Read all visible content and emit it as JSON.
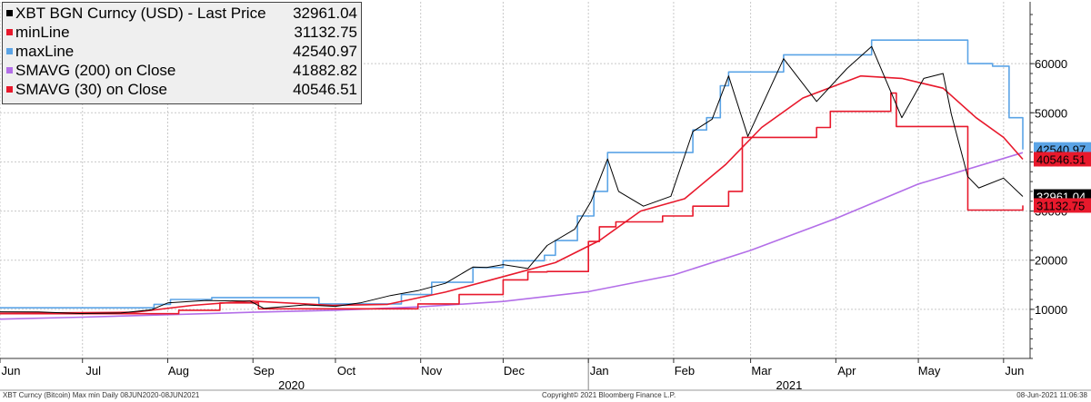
{
  "chart_data": {
    "type": "line",
    "title": "XBT BGN Curncy (USD) - Last Price",
    "ylim": [
      0,
      70000
    ],
    "yticks": [
      10000,
      20000,
      30000,
      40000,
      50000,
      60000
    ],
    "ytick_labels": [
      "10000",
      "20000",
      "30000",
      "40000",
      "50000",
      "60000"
    ],
    "xlim": [
      "2020-06-01",
      "2021-06-08"
    ],
    "month_ticks": [
      {
        "date": "2020-06-01",
        "label": "Jun"
      },
      {
        "date": "2020-07-01",
        "label": "Jul"
      },
      {
        "date": "2020-08-01",
        "label": "Aug"
      },
      {
        "date": "2020-09-01",
        "label": "Sep"
      },
      {
        "date": "2020-10-01",
        "label": "Oct"
      },
      {
        "date": "2020-11-01",
        "label": "Nov"
      },
      {
        "date": "2020-12-01",
        "label": "Dec"
      },
      {
        "date": "2021-01-01",
        "label": "Jan"
      },
      {
        "date": "2021-02-01",
        "label": "Feb"
      },
      {
        "date": "2021-03-01",
        "label": "Mar"
      },
      {
        "date": "2021-04-01",
        "label": "Apr"
      },
      {
        "date": "2021-05-01",
        "label": "May"
      },
      {
        "date": "2021-06-01",
        "label": "Jun"
      }
    ],
    "year_labels": [
      {
        "label": "2020",
        "date": "2020-09-15"
      },
      {
        "label": "2021",
        "date": "2021-03-15"
      }
    ],
    "year_divider": "2021-01-01",
    "grid": true,
    "legend_position": "top-left",
    "legend": [
      {
        "label": "XBT BGN Curncy (USD) - Last Price",
        "value": "32961.04",
        "color": "#000000"
      },
      {
        "label": "minLine",
        "value": "31132.75",
        "color": "#e8192c"
      },
      {
        "label": "maxLine",
        "value": "42540.97",
        "color": "#5ba4e6"
      },
      {
        "label": "SMAVG (200)  on Close",
        "value": "41882.82",
        "color": "#b36ee8"
      },
      {
        "label": "SMAVG (30)  on Close",
        "value": "40546.51",
        "color": "#e8192c"
      }
    ],
    "right_labels": [
      {
        "text": "42540.97",
        "value": 42540.97,
        "bg": "#5ba4e6",
        "fg": "#000000"
      },
      {
        "text": "40546.51",
        "value": 40546.51,
        "bg": "#e8192c",
        "fg": "#000000"
      },
      {
        "text": "32961.04",
        "value": 32961.04,
        "bg": "#000000",
        "fg": "#ffffff"
      },
      {
        "text": "31132.75",
        "value": 31132.75,
        "bg": "#e8192c",
        "fg": "#000000"
      }
    ],
    "series": [
      {
        "name": "XBT BGN Curncy (USD) - Last Price",
        "color": "#000000",
        "width": 1,
        "points": [
          [
            "2020-06-01",
            9500
          ],
          [
            "2020-06-15",
            9450
          ],
          [
            "2020-06-30",
            9150
          ],
          [
            "2020-07-15",
            9250
          ],
          [
            "2020-07-26",
            9900
          ],
          [
            "2020-08-01",
            11300
          ],
          [
            "2020-08-15",
            11800
          ],
          [
            "2020-08-31",
            11650
          ],
          [
            "2020-09-05",
            10200
          ],
          [
            "2020-09-20",
            10900
          ],
          [
            "2020-10-01",
            10600
          ],
          [
            "2020-10-10",
            11300
          ],
          [
            "2020-10-21",
            12800
          ],
          [
            "2020-10-31",
            13800
          ],
          [
            "2020-11-10",
            15300
          ],
          [
            "2020-11-20",
            18600
          ],
          [
            "2020-11-25",
            18500
          ],
          [
            "2020-12-01",
            19100
          ],
          [
            "2020-12-10",
            18300
          ],
          [
            "2020-12-17",
            23000
          ],
          [
            "2020-12-27",
            26300
          ],
          [
            "2021-01-02",
            32000
          ],
          [
            "2021-01-08",
            40600
          ],
          [
            "2021-01-12",
            34000
          ],
          [
            "2021-01-21",
            31000
          ],
          [
            "2021-01-31",
            33000
          ],
          [
            "2021-02-08",
            46200
          ],
          [
            "2021-02-15",
            48700
          ],
          [
            "2021-02-21",
            57500
          ],
          [
            "2021-02-28",
            45200
          ],
          [
            "2021-03-13",
            61000
          ],
          [
            "2021-03-25",
            52300
          ],
          [
            "2021-04-05",
            59000
          ],
          [
            "2021-04-14",
            63500
          ],
          [
            "2021-04-25",
            49000
          ],
          [
            "2021-05-03",
            57000
          ],
          [
            "2021-05-10",
            58000
          ],
          [
            "2021-05-13",
            49700
          ],
          [
            "2021-05-19",
            37000
          ],
          [
            "2021-05-23",
            34700
          ],
          [
            "2021-06-01",
            36700
          ],
          [
            "2021-06-08",
            32961
          ]
        ]
      },
      {
        "name": "maxLine",
        "color": "#5ba4e6",
        "width": 1.6,
        "points": [
          [
            "2020-06-01",
            10300
          ],
          [
            "2020-07-25",
            10300
          ],
          [
            "2020-07-27",
            11000
          ],
          [
            "2020-08-02",
            12000
          ],
          [
            "2020-08-17",
            12400
          ],
          [
            "2020-09-15",
            12400
          ],
          [
            "2020-09-25",
            11100
          ],
          [
            "2020-10-20",
            11100
          ],
          [
            "2020-10-25",
            13000
          ],
          [
            "2020-11-05",
            15500
          ],
          [
            "2020-11-20",
            18500
          ],
          [
            "2020-12-01",
            19900
          ],
          [
            "2020-12-16",
            21000
          ],
          [
            "2020-12-20",
            24000
          ],
          [
            "2020-12-28",
            29000
          ],
          [
            "2021-01-03",
            34000
          ],
          [
            "2021-01-08",
            41900
          ],
          [
            "2021-02-04",
            41900
          ],
          [
            "2021-02-08",
            46500
          ],
          [
            "2021-02-13",
            49000
          ],
          [
            "2021-02-18",
            55500
          ],
          [
            "2021-02-21",
            58300
          ],
          [
            "2021-03-13",
            61800
          ],
          [
            "2021-04-10",
            61800
          ],
          [
            "2021-04-14",
            64800
          ],
          [
            "2021-05-12",
            64800
          ],
          [
            "2021-05-19",
            60000
          ],
          [
            "2021-05-28",
            59500
          ],
          [
            "2021-06-03",
            49000
          ],
          [
            "2021-06-08",
            42541
          ]
        ]
      },
      {
        "name": "minLine",
        "color": "#e8192c",
        "width": 1.6,
        "points": [
          [
            "2020-06-01",
            9100
          ],
          [
            "2020-07-24",
            9100
          ],
          [
            "2020-08-05",
            9800
          ],
          [
            "2020-08-20",
            11300
          ],
          [
            "2020-09-03",
            10100
          ],
          [
            "2020-10-05",
            10100
          ],
          [
            "2020-10-31",
            11100
          ],
          [
            "2020-11-15",
            13000
          ],
          [
            "2020-12-01",
            16000
          ],
          [
            "2020-12-10",
            17600
          ],
          [
            "2020-12-17",
            17700
          ],
          [
            "2021-01-01",
            23800
          ],
          [
            "2021-01-05",
            26800
          ],
          [
            "2021-01-11",
            27800
          ],
          [
            "2021-01-28",
            29000
          ],
          [
            "2021-02-08",
            31000
          ],
          [
            "2021-02-21",
            34000
          ],
          [
            "2021-02-26",
            45000
          ],
          [
            "2021-03-17",
            45000
          ],
          [
            "2021-03-25",
            47000
          ],
          [
            "2021-03-30",
            50300
          ],
          [
            "2021-04-14",
            50300
          ],
          [
            "2021-04-21",
            54000
          ],
          [
            "2021-04-23",
            47200
          ],
          [
            "2021-05-14",
            47200
          ],
          [
            "2021-05-19",
            30200
          ],
          [
            "2021-06-04",
            30200
          ],
          [
            "2021-06-08",
            31133
          ]
        ]
      },
      {
        "name": "SMAVG (30)  on Close",
        "color": "#e8192c",
        "width": 1.6,
        "points": [
          [
            "2020-06-01",
            9200
          ],
          [
            "2020-07-01",
            9300
          ],
          [
            "2020-07-20",
            9400
          ],
          [
            "2020-08-10",
            10800
          ],
          [
            "2020-08-31",
            11700
          ],
          [
            "2020-09-30",
            10800
          ],
          [
            "2020-10-20",
            11000
          ],
          [
            "2020-11-10",
            13500
          ],
          [
            "2020-11-30",
            16500
          ],
          [
            "2020-12-20",
            19500
          ],
          [
            "2021-01-05",
            24000
          ],
          [
            "2021-01-20",
            30000
          ],
          [
            "2021-02-05",
            32500
          ],
          [
            "2021-02-20",
            39500
          ],
          [
            "2021-03-05",
            47000
          ],
          [
            "2021-03-20",
            53000
          ],
          [
            "2021-04-10",
            57500
          ],
          [
            "2021-04-25",
            57000
          ],
          [
            "2021-05-10",
            55000
          ],
          [
            "2021-05-22",
            49000
          ],
          [
            "2021-06-01",
            45000
          ],
          [
            "2021-06-08",
            40547
          ]
        ]
      },
      {
        "name": "SMAVG (200)  on Close",
        "color": "#b36ee8",
        "width": 1.6,
        "points": [
          [
            "2020-06-01",
            8000
          ],
          [
            "2020-07-01",
            8400
          ],
          [
            "2020-08-01",
            8900
          ],
          [
            "2020-09-01",
            9400
          ],
          [
            "2020-10-01",
            9800
          ],
          [
            "2020-11-01",
            10500
          ],
          [
            "2020-12-01",
            11600
          ],
          [
            "2021-01-01",
            13600
          ],
          [
            "2021-02-01",
            17000
          ],
          [
            "2021-03-01",
            22000
          ],
          [
            "2021-04-01",
            28500
          ],
          [
            "2021-05-01",
            35500
          ],
          [
            "2021-06-08",
            41883
          ]
        ]
      }
    ]
  },
  "footer": {
    "left": "XBT Curncy (Bitcoin) Max min  Daily 08JUN2020-08JUN2021",
    "center": "Copyright© 2021 Bloomberg Finance L.P.",
    "right": "08-Jun-2021 11:06:38"
  }
}
